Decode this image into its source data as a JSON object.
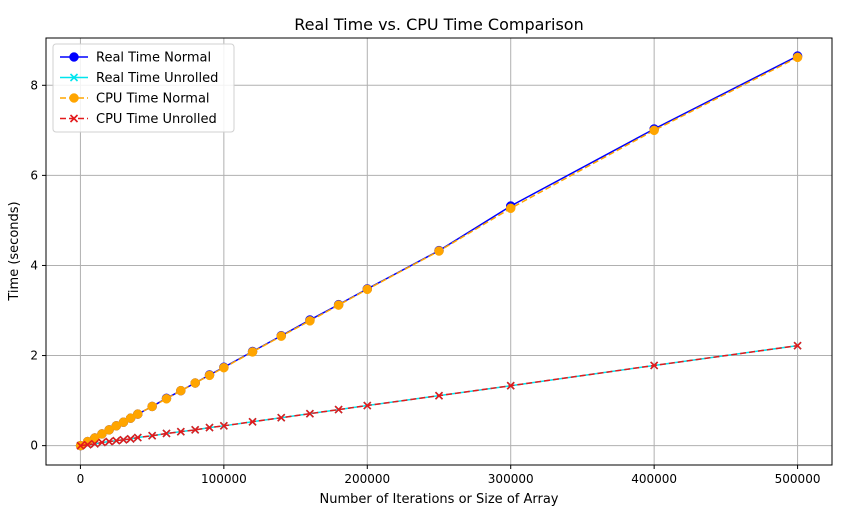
{
  "chart_data": {
    "type": "line",
    "title": "Real Time vs. CPU Time Comparison",
    "xlabel": "Number of Iterations or Size of Array",
    "ylabel": "Time (seconds)",
    "xlim": [
      -24000,
      524000
    ],
    "ylim": [
      -0.43,
      9.05
    ],
    "xticks": [
      0,
      100000,
      200000,
      300000,
      400000,
      500000
    ],
    "yticks": [
      0,
      2,
      4,
      6,
      8
    ],
    "grid": true,
    "legend_position": "top-left",
    "x": [
      100,
      5000,
      10000,
      15000,
      20000,
      25000,
      30000,
      35000,
      40000,
      50000,
      60000,
      70000,
      80000,
      90000,
      100000,
      120000,
      140000,
      160000,
      180000,
      200000,
      250000,
      300000,
      400000,
      500000
    ],
    "series": [
      {
        "name": "Real Time Normal",
        "color": "#0000ff",
        "linestyle": "solid",
        "marker": "circle",
        "values": [
          0.0,
          0.09,
          0.17,
          0.26,
          0.35,
          0.44,
          0.52,
          0.61,
          0.7,
          0.87,
          1.05,
          1.22,
          1.39,
          1.57,
          1.74,
          2.09,
          2.44,
          2.79,
          3.13,
          3.48,
          4.33,
          5.32,
          7.03,
          8.65
        ]
      },
      {
        "name": "Real Time Unrolled",
        "color": "#00e5ee",
        "linestyle": "solid",
        "marker": "x",
        "values": [
          0.0,
          0.02,
          0.04,
          0.07,
          0.09,
          0.11,
          0.13,
          0.15,
          0.18,
          0.22,
          0.27,
          0.31,
          0.35,
          0.4,
          0.44,
          0.53,
          0.62,
          0.71,
          0.8,
          0.89,
          1.11,
          1.33,
          1.78,
          2.22
        ]
      },
      {
        "name": "CPU Time Normal",
        "color": "#ffa500",
        "linestyle": "dashed",
        "marker": "circle",
        "values": [
          0.0,
          0.09,
          0.17,
          0.26,
          0.35,
          0.44,
          0.52,
          0.61,
          0.7,
          0.87,
          1.04,
          1.22,
          1.39,
          1.56,
          1.73,
          2.08,
          2.43,
          2.77,
          3.12,
          3.47,
          4.32,
          5.27,
          7.0,
          8.62
        ]
      },
      {
        "name": "CPU Time Unrolled",
        "color": "#e31a1c",
        "linestyle": "dashed",
        "marker": "x",
        "values": [
          0.0,
          0.02,
          0.04,
          0.07,
          0.09,
          0.11,
          0.13,
          0.15,
          0.18,
          0.22,
          0.27,
          0.31,
          0.35,
          0.4,
          0.44,
          0.53,
          0.62,
          0.71,
          0.8,
          0.89,
          1.11,
          1.33,
          1.78,
          2.22
        ]
      }
    ]
  }
}
